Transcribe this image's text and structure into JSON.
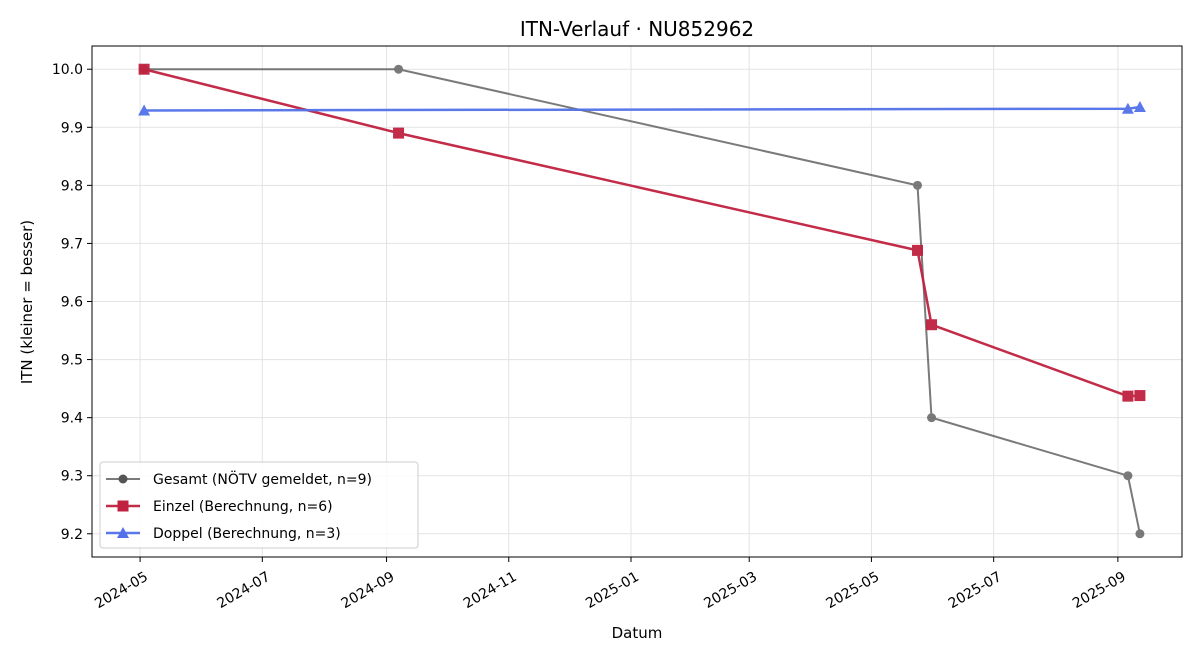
{
  "chart_data": {
    "type": "line",
    "title": "ITN-Verlauf · NU852962",
    "xlabel": "Datum",
    "ylabel": "ITN  (kleiner = besser)",
    "x_ticks": [
      "2024-05",
      "2024-07",
      "2024-09",
      "2024-11",
      "2025-01",
      "2025-03",
      "2025-05",
      "2025-07",
      "2025-09"
    ],
    "y_ticks": [
      "9.2",
      "9.3",
      "9.4",
      "9.5",
      "9.6",
      "9.7",
      "9.8",
      "9.9",
      "10.0"
    ],
    "xlim": [
      "2024-04-07",
      "2025-10-03"
    ],
    "ylim": [
      9.16,
      10.04
    ],
    "grid": true,
    "legend_position": "lower-left",
    "series": [
      {
        "name": "Gesamt (NÖTV gemeldet, n=9)",
        "color": "#555555",
        "marker": "circle",
        "points": [
          {
            "x": "2024-05-03",
            "y": 10.0
          },
          {
            "x": "2024-09-07",
            "y": 10.0
          },
          {
            "x": "2025-05-24",
            "y": 9.8
          },
          {
            "x": "2025-05-31",
            "y": 9.4
          },
          {
            "x": "2025-09-06",
            "y": 9.3
          },
          {
            "x": "2025-09-12",
            "y": 9.2
          }
        ]
      },
      {
        "name": "Einzel (Berechnung, n=6)",
        "color": "#c0213f",
        "marker": "square",
        "points": [
          {
            "x": "2024-05-03",
            "y": 10.0
          },
          {
            "x": "2024-09-07",
            "y": 9.89
          },
          {
            "x": "2025-05-24",
            "y": 9.688
          },
          {
            "x": "2025-05-31",
            "y": 9.56
          },
          {
            "x": "2025-09-06",
            "y": 9.437
          },
          {
            "x": "2025-09-12",
            "y": 9.438
          }
        ]
      },
      {
        "name": "Doppel (Berechnung, n=3)",
        "color": "#5271e8",
        "marker": "triangle",
        "points": [
          {
            "x": "2024-05-03",
            "y": 9.929
          },
          {
            "x": "2025-09-06",
            "y": 9.932
          },
          {
            "x": "2025-09-12",
            "y": 9.935
          }
        ]
      }
    ]
  }
}
